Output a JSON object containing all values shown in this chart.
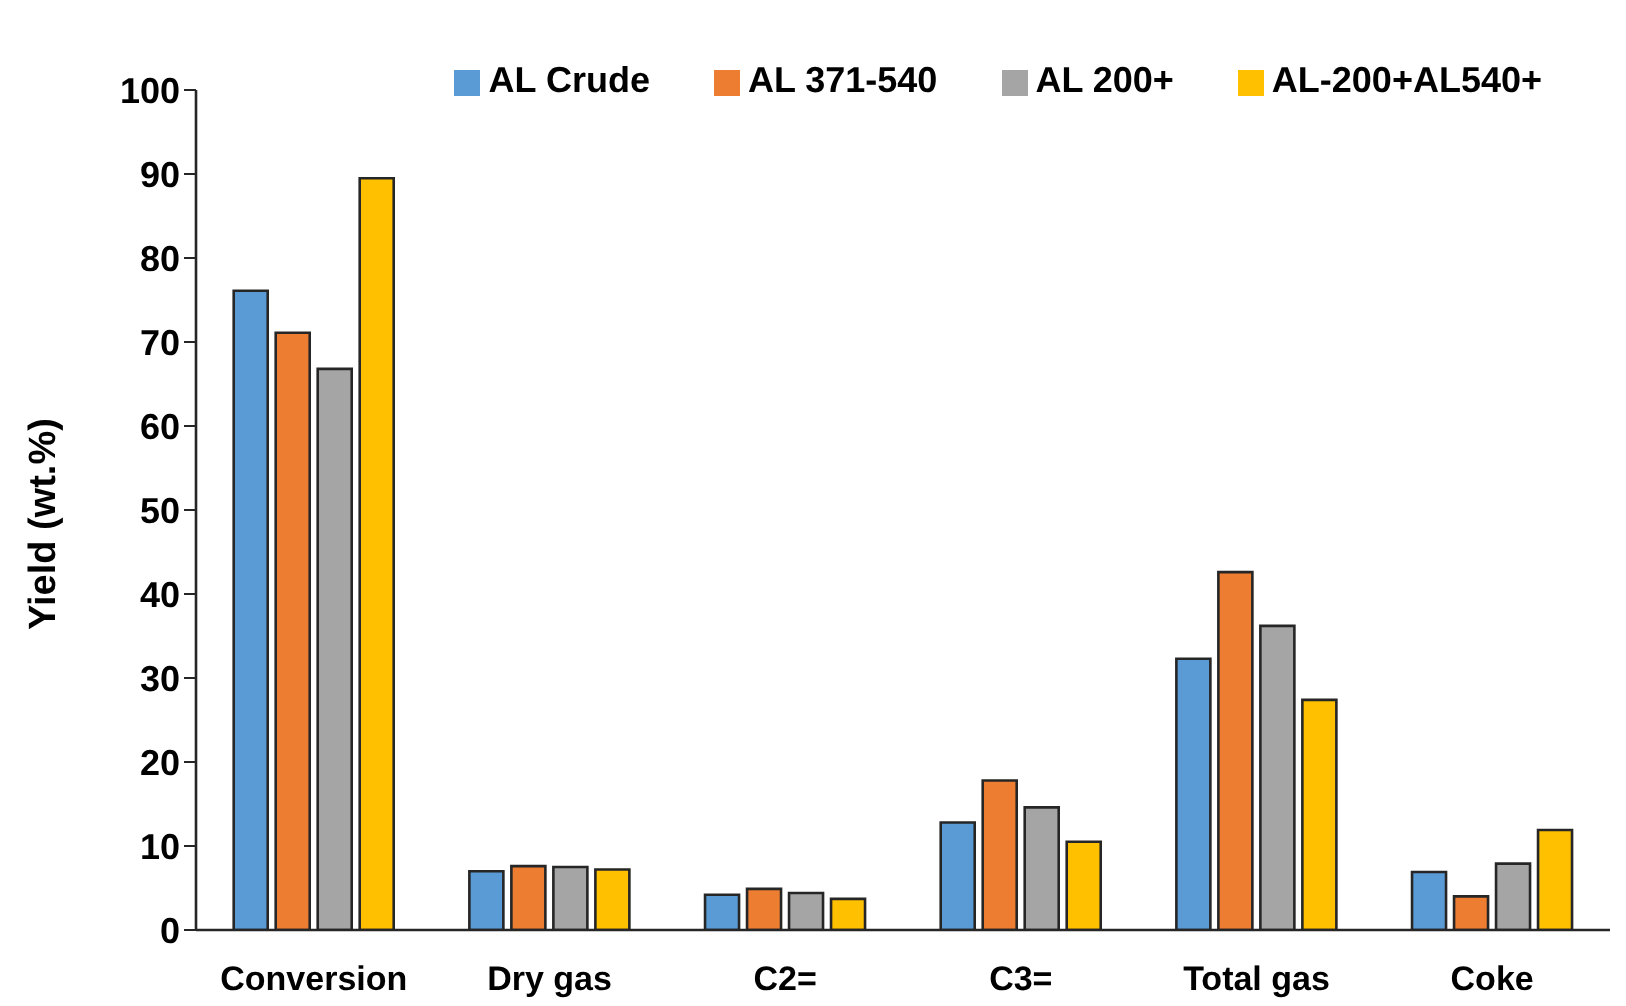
{
  "chart_data": {
    "type": "bar",
    "ylabel": "Yield (wt.%)",
    "categories": [
      "Conversion",
      "Dry gas",
      "C2=",
      "C3=",
      "Total gas",
      "Coke"
    ],
    "series": [
      {
        "name": "AL Crude",
        "color": "#5b9bd5",
        "values": [
          76.1,
          7.0,
          4.2,
          12.8,
          32.3,
          6.9
        ]
      },
      {
        "name": "AL 371-540",
        "color": "#ed7d31",
        "values": [
          71.1,
          7.6,
          4.9,
          17.8,
          42.6,
          4.0
        ]
      },
      {
        "name": "AL 200+",
        "color": "#a5a5a5",
        "values": [
          66.8,
          7.5,
          4.4,
          14.6,
          36.2,
          7.9
        ]
      },
      {
        "name": "AL-200+AL540+",
        "color": "#ffc000",
        "values": [
          89.5,
          7.2,
          3.7,
          10.5,
          27.4,
          11.9
        ]
      }
    ],
    "ylim": [
      0,
      100
    ],
    "yticks": [
      0,
      10,
      20,
      30,
      40,
      50,
      60,
      70,
      80,
      90,
      100
    ],
    "grid": false,
    "legend": "top right"
  }
}
